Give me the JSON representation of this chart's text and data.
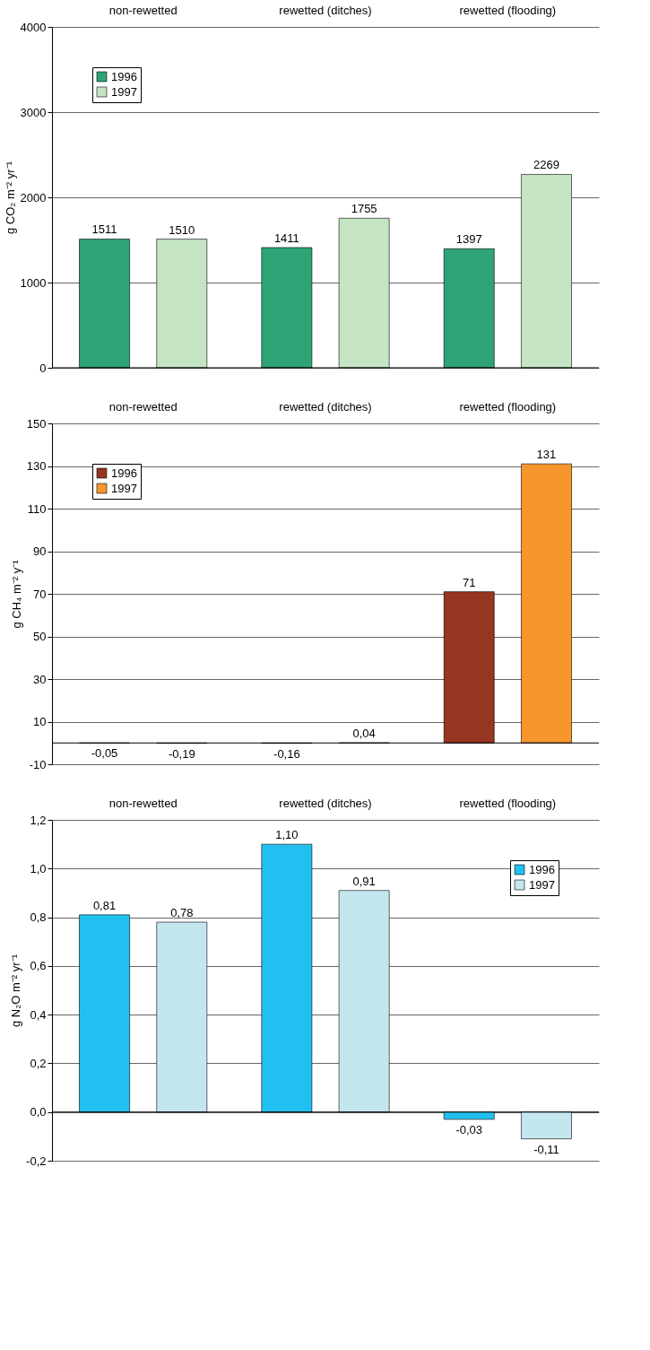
{
  "chart_data": [
    {
      "type": "bar",
      "categories": [
        "non-rewetted",
        "rewetted (ditches)",
        "rewetted (flooding)"
      ],
      "ylabel": "g CO₂ m⁻² yr⁻¹",
      "ylim": [
        0,
        4000
      ],
      "yticks": [
        0,
        1000,
        2000,
        3000,
        4000
      ],
      "grid": "y",
      "legend": "top left",
      "series": [
        {
          "name": "1996",
          "color": "#2ea476",
          "values": [
            1511,
            1411,
            1397
          ],
          "value_labels": [
            "1511",
            "1411",
            "1397"
          ]
        },
        {
          "name": "1997",
          "color": "#c4e4c4",
          "values": [
            1510,
            1755,
            2269
          ],
          "value_labels": [
            "1510",
            "1755",
            "2269"
          ]
        }
      ]
    },
    {
      "type": "bar",
      "categories": [
        "non-rewetted",
        "rewetted (ditches)",
        "rewetted (flooding)"
      ],
      "ylabel": "g CH₄ m⁻² y⁻¹",
      "ylim": [
        -10,
        150
      ],
      "yticks": [
        -10,
        10,
        30,
        50,
        70,
        90,
        110,
        130,
        150
      ],
      "grid": "y",
      "legend": "top left",
      "series": [
        {
          "name": "1996",
          "color": "#963520",
          "values": [
            -0.05,
            -0.16,
            71
          ],
          "value_labels": [
            "-0,05",
            "-0,16",
            "71"
          ]
        },
        {
          "name": "1997",
          "color": "#f7962d",
          "values": [
            -0.19,
            0.04,
            131
          ],
          "value_labels": [
            "-0,19",
            "0,04",
            "131"
          ]
        }
      ]
    },
    {
      "type": "bar",
      "categories": [
        "non-rewetted",
        "rewetted (ditches)",
        "rewetted (flooding)"
      ],
      "ylabel": "g N₂O m⁻² yr⁻¹",
      "ylim": [
        -0.2,
        1.2
      ],
      "yticks": [
        {
          "value": -0.2,
          "label": "-0,2"
        },
        {
          "value": 0,
          "label": "0,0"
        },
        {
          "value": 0.2,
          "label": "0,2"
        },
        {
          "value": 0.4,
          "label": "0,4"
        },
        {
          "value": 0.6,
          "label": "0,6"
        },
        {
          "value": 0.8,
          "label": "0,8"
        },
        {
          "value": 1.0,
          "label": "1,0"
        },
        {
          "value": 1.2,
          "label": "1,2"
        }
      ],
      "grid": "y",
      "legend": "top right",
      "series": [
        {
          "name": "1996",
          "color": "#22c0f0",
          "values": [
            0.81,
            1.1,
            -0.03
          ],
          "value_labels": [
            "0,81",
            "1,10",
            "-0,03"
          ]
        },
        {
          "name": "1997",
          "color": "#c4e6ee",
          "values": [
            0.78,
            0.91,
            -0.11
          ],
          "value_labels": [
            "0,78",
            "0,91",
            "-0,11"
          ]
        }
      ]
    }
  ]
}
